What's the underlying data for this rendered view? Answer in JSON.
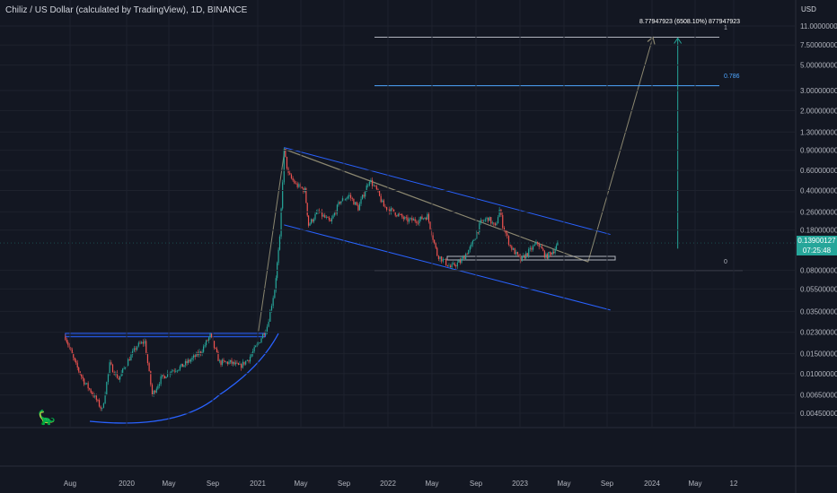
{
  "header": {
    "title": "Chiliz / US Dollar (calculated by TradingView), 1D, BINANCE",
    "currency": "USD"
  },
  "price_badge": {
    "price": "0.13900127",
    "countdown": "07:25:48"
  },
  "colors": {
    "background": "#131722",
    "up": "#26a69a",
    "down": "#ef5350",
    "channel": "#2962ff",
    "trend": "#8b8770",
    "fib": "#b2b5be",
    "fib_786": "#4ea6ff",
    "target_arrow": "#26a69a"
  },
  "annotations": {
    "target_label": "8.77947923 (6508.10%) 877947923",
    "fib_top": "1",
    "fib_786": "0.786",
    "fib_zero": "0"
  },
  "chart_data": {
    "type": "candlestick",
    "symbol": "CHZUSD",
    "timeframe": "1D",
    "yscale": "log",
    "y_ticks": [
      "11.0000000",
      "7.50000000",
      "5.00000000",
      "3.00000000",
      "2.00000000",
      "1.30000000",
      "0.90000000",
      "0.60000000",
      "0.40000000",
      "0.26000000",
      "0.18000000",
      "0.08000000",
      "0.05500000",
      "0.03500000",
      "0.02300000",
      "0.01500000",
      "0.01000000",
      "0.00650000",
      "0.00450000"
    ],
    "x_ticks": [
      "Aug",
      "2020",
      "May",
      "Sep",
      "2021",
      "May",
      "Sep",
      "2022",
      "May",
      "Sep",
      "2023",
      "May",
      "Sep",
      "2024",
      "May",
      "12"
    ],
    "last_price": 0.13900127,
    "path": [
      [
        "2019-07-15",
        0.021
      ],
      [
        "2019-08-10",
        0.0125
      ],
      [
        "2019-09-05",
        0.0085
      ],
      [
        "2019-10-01",
        0.0065
      ],
      [
        "2019-10-25",
        0.0048
      ],
      [
        "2019-11-15",
        0.012
      ],
      [
        "2019-12-10",
        0.009
      ],
      [
        "2020-01-05",
        0.013
      ],
      [
        "2020-01-30",
        0.0175
      ],
      [
        "2020-02-20",
        0.019
      ],
      [
        "2020-03-12",
        0.0065
      ],
      [
        "2020-04-05",
        0.009
      ],
      [
        "2020-05-01",
        0.0105
      ],
      [
        "2020-06-01",
        0.0115
      ],
      [
        "2020-07-01",
        0.0135
      ],
      [
        "2020-07-25",
        0.0155
      ],
      [
        "2020-08-20",
        0.0215
      ],
      [
        "2020-09-15",
        0.0125
      ],
      [
        "2020-10-15",
        0.0125
      ],
      [
        "2020-11-10",
        0.0115
      ],
      [
        "2020-12-05",
        0.0135
      ],
      [
        "2021-01-01",
        0.0185
      ],
      [
        "2021-01-25",
        0.026
      ],
      [
        "2021-02-15",
        0.055
      ],
      [
        "2021-03-01",
        0.15
      ],
      [
        "2021-03-13",
        0.89
      ],
      [
        "2021-03-25",
        0.55
      ],
      [
        "2021-04-15",
        0.45
      ],
      [
        "2021-05-10",
        0.4
      ],
      [
        "2021-05-20",
        0.2
      ],
      [
        "2021-06-15",
        0.26
      ],
      [
        "2021-07-20",
        0.21
      ],
      [
        "2021-08-15",
        0.32
      ],
      [
        "2021-09-10",
        0.36
      ],
      [
        "2021-10-05",
        0.28
      ],
      [
        "2021-11-05",
        0.5
      ],
      [
        "2021-11-25",
        0.4
      ],
      [
        "2021-12-15",
        0.29
      ],
      [
        "2022-01-20",
        0.25
      ],
      [
        "2022-02-15",
        0.22
      ],
      [
        "2022-03-20",
        0.22
      ],
      [
        "2022-04-15",
        0.24
      ],
      [
        "2022-05-12",
        0.11
      ],
      [
        "2022-06-18",
        0.085
      ],
      [
        "2022-07-15",
        0.095
      ],
      [
        "2022-08-15",
        0.13
      ],
      [
        "2022-09-10",
        0.21
      ],
      [
        "2022-10-01",
        0.23
      ],
      [
        "2022-10-20",
        0.19
      ],
      [
        "2022-11-01",
        0.27
      ],
      [
        "2022-11-10",
        0.2
      ],
      [
        "2022-12-01",
        0.13
      ],
      [
        "2022-12-30",
        0.098
      ],
      [
        "2023-01-25",
        0.12
      ],
      [
        "2023-02-15",
        0.14
      ],
      [
        "2023-03-10",
        0.105
      ],
      [
        "2023-04-01",
        0.12
      ],
      [
        "2023-04-15",
        0.139
      ]
    ],
    "drawings": {
      "channel_upper": [
        [
          "2021-03-13",
          0.95
        ],
        [
          "2023-09-05",
          0.165
        ]
      ],
      "channel_lower": [
        [
          "2021-03-13",
          0.2
        ],
        [
          "2023-09-05",
          0.036
        ]
      ],
      "descending_trend": [
        [
          "2021-03-13",
          0.92
        ],
        [
          "2023-07-05",
          0.095
        ]
      ],
      "projection": [
        [
          "2021-01-01",
          0.0235
        ],
        [
          "2021-03-15",
          0.92
        ],
        [
          "2023-07-05",
          0.095
        ],
        [
          "2024-01-01",
          8.78
        ]
      ],
      "fib_levels": [
        {
          "label": "1",
          "value": 8.78
        },
        {
          "label": "0.786",
          "value": 3.3
        },
        {
          "label": "0",
          "value": 0.08
        }
      ],
      "target_arrow": {
        "date": "2024-03-10",
        "from": 0.124,
        "to": 8.78
      },
      "base_box": {
        "from": "2019-07-15",
        "to": "2021-01-20",
        "top": 0.0225,
        "bottom": 0.021
      }
    }
  }
}
